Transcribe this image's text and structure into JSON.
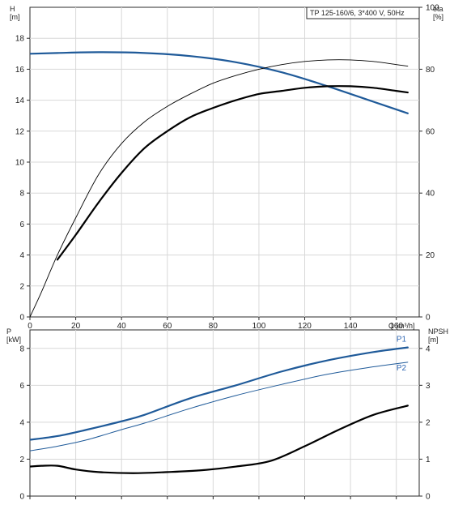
{
  "chart_data": [
    {
      "type": "line",
      "panel": "top",
      "title": "TP 125-160/6, 3*400 V, 50Hz",
      "x_axis": {
        "label": "Q [m³/h]",
        "range": [
          0,
          170
        ],
        "ticks": [
          0,
          20,
          40,
          60,
          80,
          100,
          120,
          140,
          160
        ]
      },
      "left_axis": {
        "label_lines": [
          "H",
          "[m]"
        ],
        "range": [
          0,
          20
        ],
        "ticks": [
          0,
          2,
          4,
          6,
          8,
          10,
          12,
          14,
          16,
          18
        ]
      },
      "right_axis": {
        "label_lines": [
          "eta",
          "[%]"
        ],
        "range": [
          0,
          100
        ],
        "ticks": [
          0,
          20,
          40,
          60,
          80,
          100
        ]
      },
      "series": [
        {
          "axis": "left",
          "color": "#1f5a99",
          "width": 2.2,
          "points": [
            [
              0,
              17.0
            ],
            [
              12,
              17.05
            ],
            [
              30,
              17.1
            ],
            [
              50,
              17.05
            ],
            [
              70,
              16.85
            ],
            [
              90,
              16.45
            ],
            [
              110,
              15.8
            ],
            [
              130,
              14.9
            ],
            [
              150,
              13.9
            ],
            [
              165,
              13.15
            ]
          ]
        },
        {
          "axis": "right",
          "color": "#000000",
          "width": 0.9,
          "points": [
            [
              0,
              0
            ],
            [
              5,
              8
            ],
            [
              12,
              20
            ],
            [
              20,
              32
            ],
            [
              30,
              46
            ],
            [
              40,
              56
            ],
            [
              50,
              63
            ],
            [
              60,
              68
            ],
            [
              70,
              72
            ],
            [
              80,
              75.5
            ],
            [
              90,
              78
            ],
            [
              100,
              80
            ],
            [
              110,
              81.5
            ],
            [
              120,
              82.5
            ],
            [
              130,
              83
            ],
            [
              140,
              83
            ],
            [
              150,
              82.5
            ],
            [
              160,
              81.5
            ],
            [
              165,
              81
            ]
          ]
        },
        {
          "axis": "right",
          "color": "#000000",
          "width": 2.2,
          "points": [
            [
              12,
              18.5
            ],
            [
              20,
              26.5
            ],
            [
              30,
              37
            ],
            [
              40,
              46.5
            ],
            [
              50,
              54.5
            ],
            [
              60,
              60
            ],
            [
              70,
              64.5
            ],
            [
              80,
              67.5
            ],
            [
              90,
              70
            ],
            [
              100,
              72
            ],
            [
              110,
              73
            ],
            [
              120,
              74
            ],
            [
              130,
              74.5
            ],
            [
              140,
              74.5
            ],
            [
              150,
              74
            ],
            [
              160,
              73
            ],
            [
              165,
              72.5
            ]
          ]
        }
      ]
    },
    {
      "type": "line",
      "panel": "bottom",
      "x_axis": {
        "range": [
          0,
          170
        ],
        "ticks": [
          0,
          20,
          40,
          60,
          80,
          100,
          120,
          140,
          160
        ]
      },
      "left_axis": {
        "label_lines": [
          "P",
          "[kW]"
        ],
        "range": [
          0,
          9
        ],
        "ticks": [
          0,
          2,
          4,
          6,
          8
        ]
      },
      "right_axis": {
        "label_lines": [
          "NPSH",
          "[m]"
        ],
        "range": [
          0,
          4.5
        ],
        "ticks": [
          0,
          1,
          2,
          3,
          4
        ]
      },
      "series": [
        {
          "name": "P1",
          "axis": "left",
          "color": "#1f5a99",
          "width": 2.2,
          "points": [
            [
              0,
              3.05
            ],
            [
              12,
              3.25
            ],
            [
              25,
              3.6
            ],
            [
              40,
              4.05
            ],
            [
              50,
              4.4
            ],
            [
              70,
              5.3
            ],
            [
              90,
              6.0
            ],
            [
              110,
              6.75
            ],
            [
              130,
              7.35
            ],
            [
              150,
              7.8
            ],
            [
              165,
              8.05
            ]
          ]
        },
        {
          "name": "P2",
          "axis": "left",
          "color": "#1f5a99",
          "width": 1.0,
          "points": [
            [
              0,
              2.45
            ],
            [
              12,
              2.7
            ],
            [
              25,
              3.05
            ],
            [
              40,
              3.6
            ],
            [
              50,
              3.95
            ],
            [
              70,
              4.75
            ],
            [
              90,
              5.45
            ],
            [
              110,
              6.05
            ],
            [
              130,
              6.6
            ],
            [
              150,
              7.0
            ],
            [
              165,
              7.25
            ]
          ]
        },
        {
          "axis": "right",
          "color": "#000000",
          "width": 2.2,
          "points": [
            [
              0,
              0.8
            ],
            [
              5,
              0.82
            ],
            [
              12,
              0.82
            ],
            [
              20,
              0.72
            ],
            [
              30,
              0.65
            ],
            [
              45,
              0.62
            ],
            [
              60,
              0.65
            ],
            [
              75,
              0.7
            ],
            [
              90,
              0.8
            ],
            [
              105,
              0.95
            ],
            [
              120,
              1.35
            ],
            [
              135,
              1.8
            ],
            [
              150,
              2.2
            ],
            [
              165,
              2.45
            ]
          ]
        }
      ]
    }
  ]
}
